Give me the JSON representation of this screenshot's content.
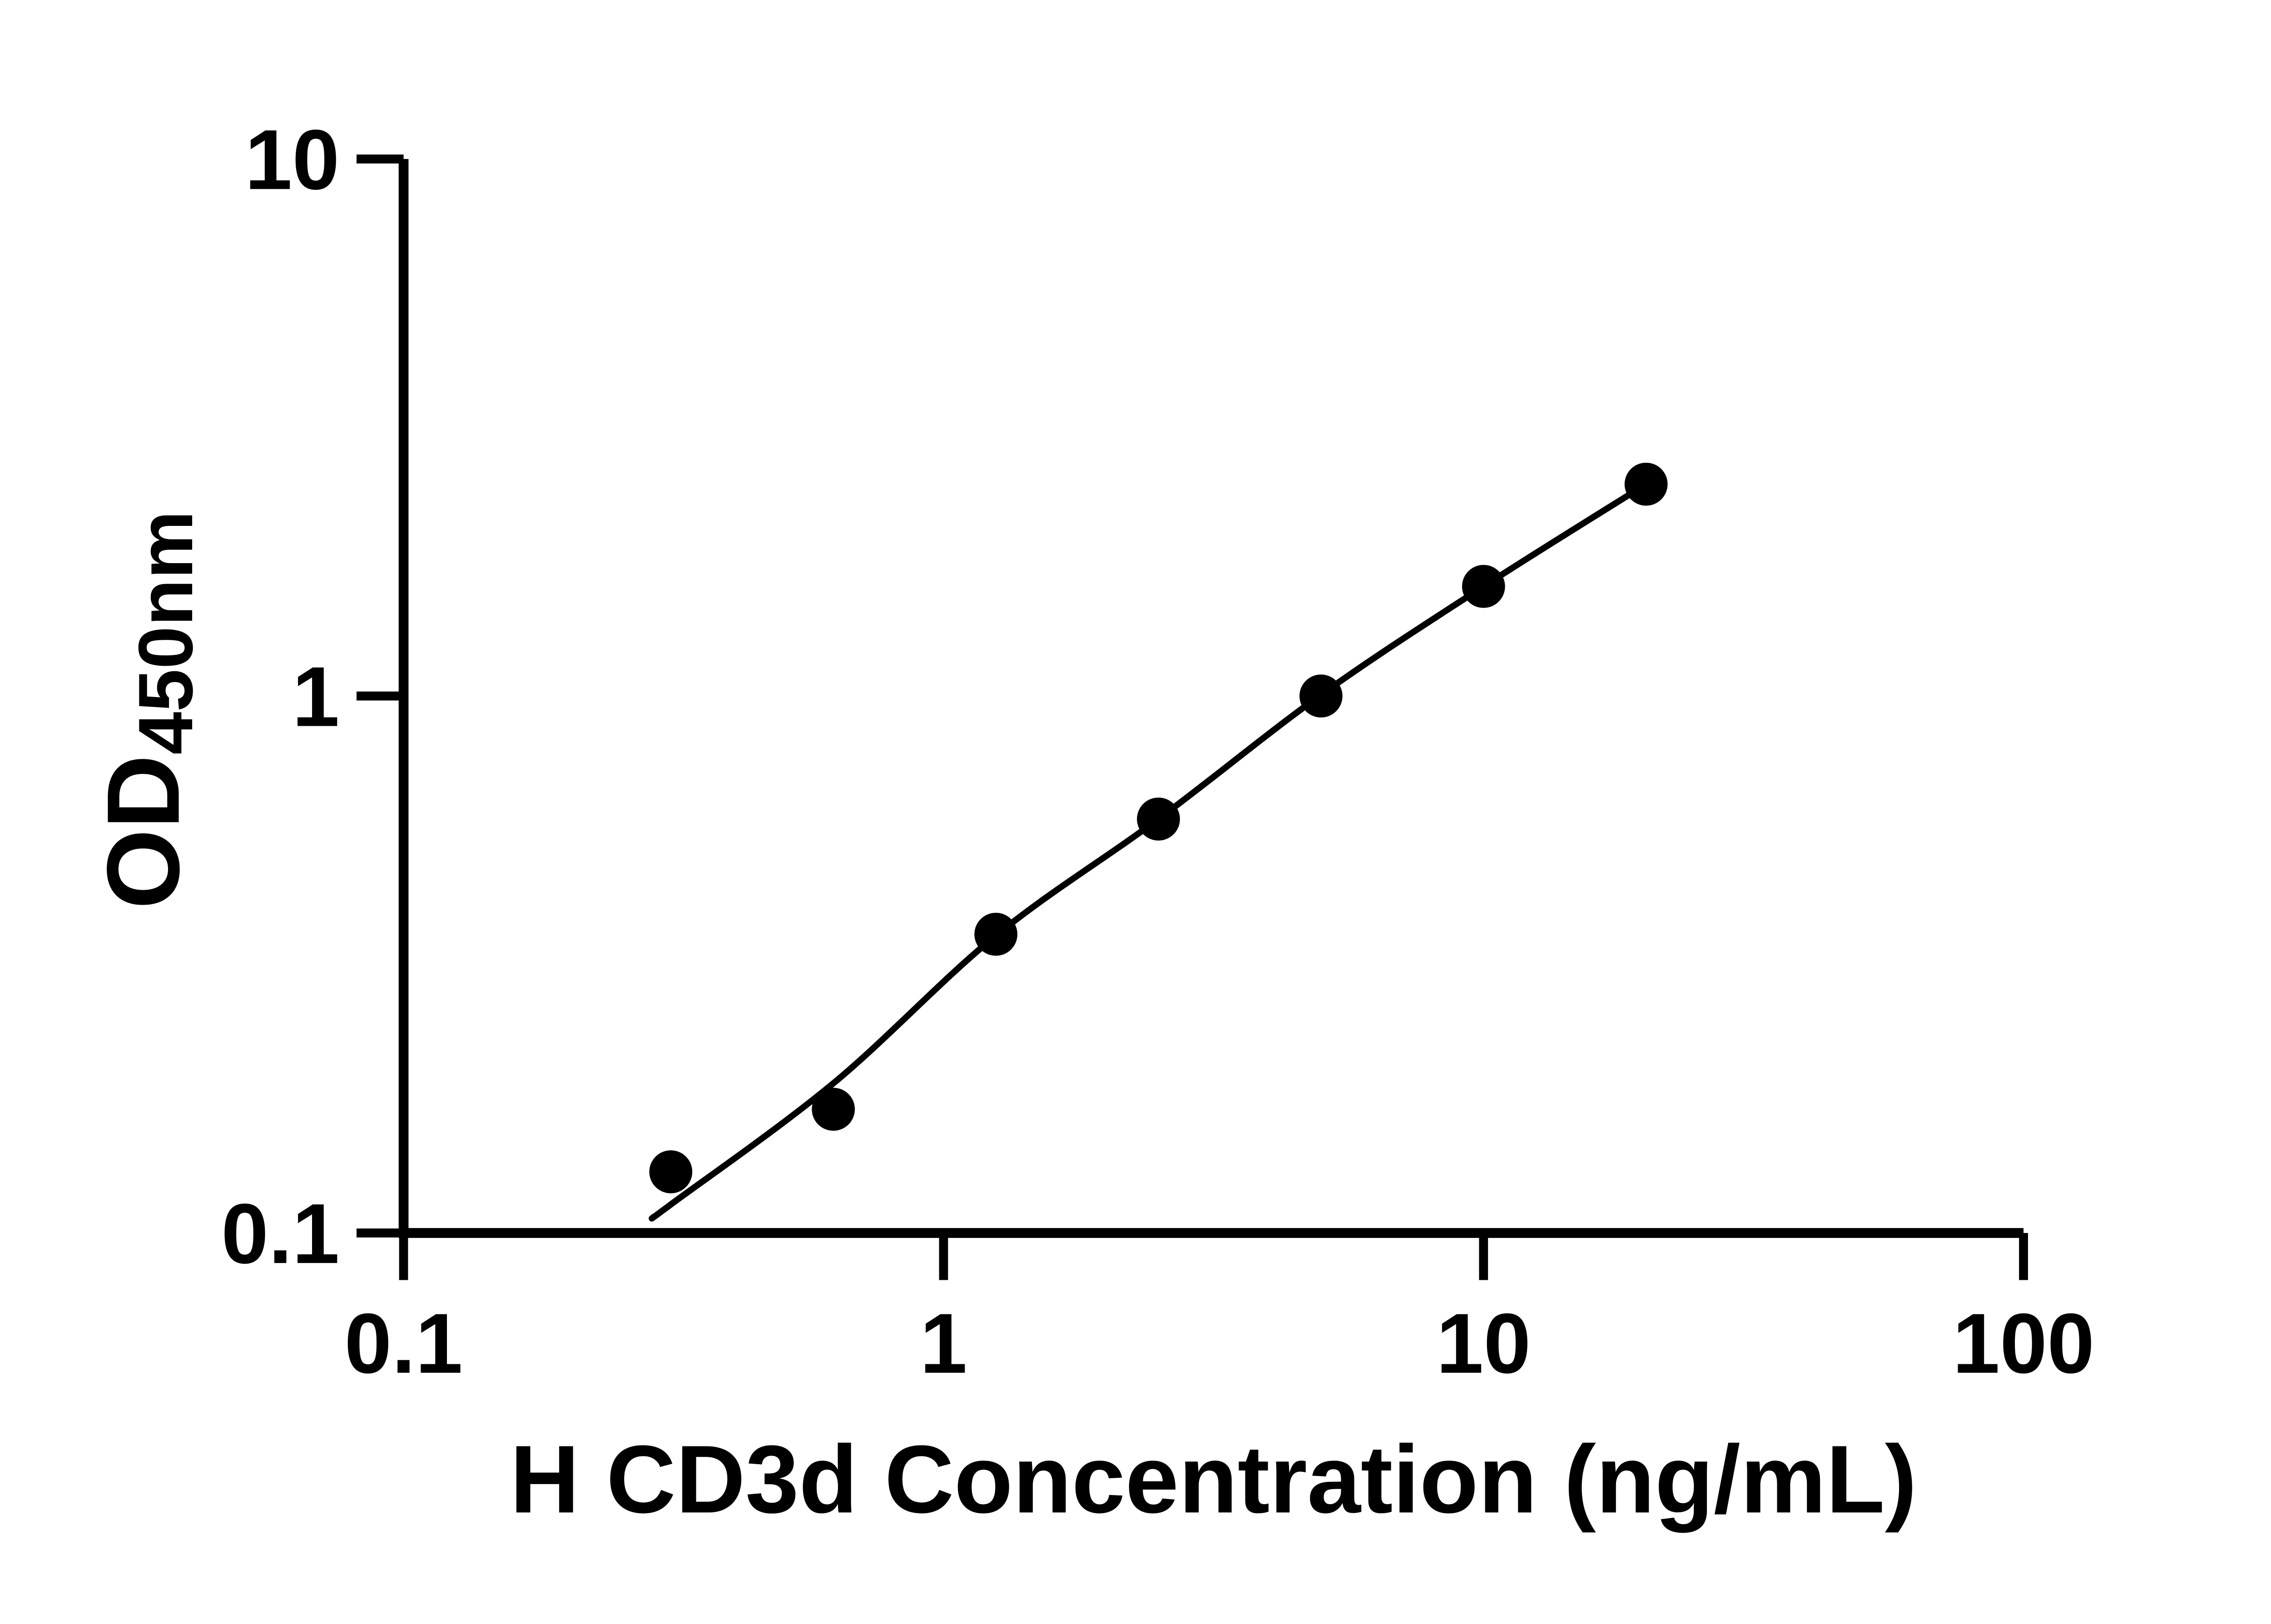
{
  "figure": {
    "background_color": "#ffffff",
    "ink_color": "#000000"
  },
  "chart_data": {
    "type": "scatter",
    "title": "",
    "xlabel": "H CD3d Concentration (ng/mL)",
    "ylabel_main": "OD",
    "ylabel_sub": "450nm",
    "x_scale": "log10",
    "y_scale": "log10",
    "xlim": [
      0.1,
      100
    ],
    "ylim": [
      0.1,
      10
    ],
    "grid": false,
    "legend_position": "none",
    "x_ticks": {
      "values": [
        0.1,
        1,
        10,
        100
      ],
      "labels": [
        "0.1",
        "1",
        "10",
        "100"
      ]
    },
    "y_ticks": {
      "values": [
        10,
        1,
        0.1
      ],
      "labels": [
        "10",
        "1",
        "0.1"
      ]
    },
    "series": [
      {
        "name": "standards",
        "marker": "filled-circle",
        "color": "#000000",
        "x": [
          0.3125,
          0.625,
          1.25,
          2.5,
          5,
          10,
          20
        ],
        "y": [
          0.13,
          0.17,
          0.36,
          0.59,
          1.0,
          1.6,
          2.48
        ]
      }
    ],
    "fit_curve": {
      "name": "standard-curve-fit-line",
      "color": "#000000",
      "x": [
        0.29,
        0.3125,
        0.625,
        1.25,
        2.5,
        5,
        10,
        20
      ],
      "y": [
        0.107,
        0.113,
        0.19,
        0.358,
        0.59,
        1.005,
        1.6,
        2.48
      ]
    }
  }
}
